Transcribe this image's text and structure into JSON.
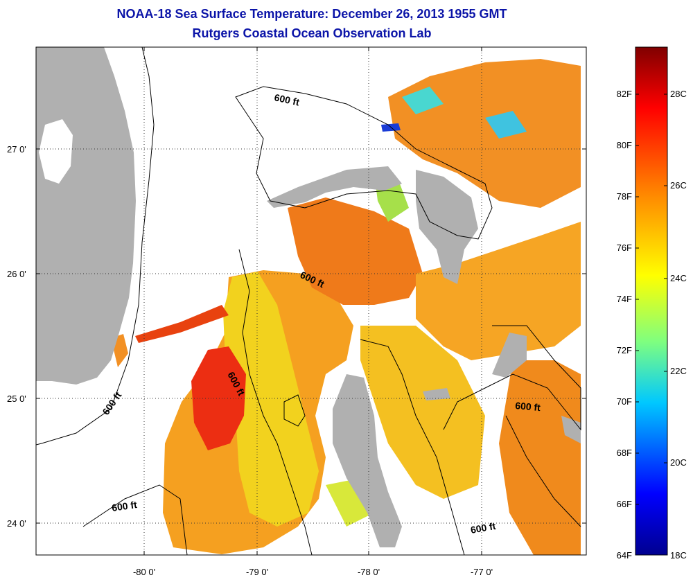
{
  "title": "NOAA-18 Sea Surface Temperature:  December 26, 2013 1955 GMT",
  "subtitle": "Rutgers Coastal Ocean Observation Lab",
  "map": {
    "lon_ticks": [
      "-80 0'",
      "-79 0'",
      "-78 0'",
      "-77 0'"
    ],
    "lat_ticks": [
      "27 0'",
      "26 0'",
      "25 0'",
      "24 0'"
    ],
    "contour_label": "600 ft",
    "colors": {
      "land": "#b0b0b0",
      "no_data": "#ffffff",
      "contour": "#000000"
    }
  },
  "colorbar": {
    "fahrenheit_labels": [
      "82F",
      "80F",
      "78F",
      "76F",
      "74F",
      "72F",
      "70F",
      "68F",
      "66F",
      "64F"
    ],
    "celsius_labels": [
      "28C",
      "26C",
      "24C",
      "22C",
      "20C",
      "18C"
    ],
    "colors": [
      "#00008f",
      "#0000ff",
      "#00c8ff",
      "#7fff7f",
      "#ffff00",
      "#ff8000",
      "#ff0000",
      "#800000"
    ]
  }
}
